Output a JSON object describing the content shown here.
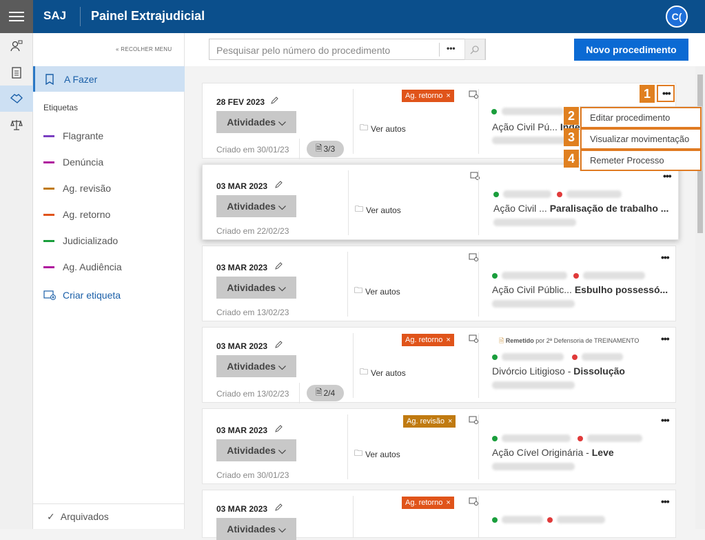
{
  "header": {
    "brand": "SAJ",
    "title": "Painel Extrajudicial",
    "avatar": "C("
  },
  "sidebar": {
    "collapse": "« RECOLHER MENU",
    "active": "A Fazer",
    "labels_heading": "Etiquetas",
    "tags": [
      {
        "label": "Flagrante",
        "color": "#7a3fc1"
      },
      {
        "label": "Denúncia",
        "color": "#b0169e"
      },
      {
        "label": "Ag. revisão",
        "color": "#c07a10"
      },
      {
        "label": "Ag. retorno",
        "color": "#e0541a"
      },
      {
        "label": "Judicializado",
        "color": "#1a9e3c"
      },
      {
        "label": "Ag. Audiência",
        "color": "#b0169e"
      }
    ],
    "create": "Criar etiqueta",
    "archived": "Arquivados"
  },
  "toolbar": {
    "search_placeholder": "Pesquisar pelo número do procedimento",
    "more": "•••",
    "new_button": "Novo procedimento"
  },
  "common": {
    "activities": "Atividades",
    "view": "Ver autos",
    "more": "•••"
  },
  "cards": [
    {
      "date": "28 FEV 2023",
      "created": "Criado em 30/01/23",
      "badge": "Ag. retorno",
      "badge_color": "#e0541a",
      "count": "3/3",
      "title": "Ação Civil Pú...",
      "subject": "Inde..."
    },
    {
      "date": "03 MAR 2023",
      "created": "Criado em 22/02/23",
      "title": "Ação Civil ...",
      "subject": "Paralisação de trabalho ..."
    },
    {
      "date": "03 MAR 2023",
      "created": "Criado em 13/02/23",
      "title": "Ação Civil Públic...",
      "subject": "Esbulho possessó..."
    },
    {
      "date": "03 MAR 2023",
      "created": "Criado em 13/02/23",
      "badge": "Ag. retorno",
      "badge_color": "#e0541a",
      "count": "2/4",
      "title": "Divórcio Litigioso",
      "subject": "Dissolução",
      "remitted": "Remetido",
      "remitted_by": "por 2ª Defensoria de TREINAMENTO"
    },
    {
      "date": "03 MAR 2023",
      "created": "Criado em 30/01/23",
      "badge": "Ag. revisão",
      "badge_color": "#c07a10",
      "title": "Ação Cível Originária",
      "subject": "Leve"
    },
    {
      "date": "03 MAR 2023",
      "badge": "Ag. retorno",
      "badge_color": "#e0541a"
    }
  ],
  "menu": {
    "items": [
      "Editar procedimento",
      "Visualizar movimentação",
      "Remeter Processo"
    ]
  },
  "steps": [
    "1",
    "2",
    "3",
    "4"
  ]
}
